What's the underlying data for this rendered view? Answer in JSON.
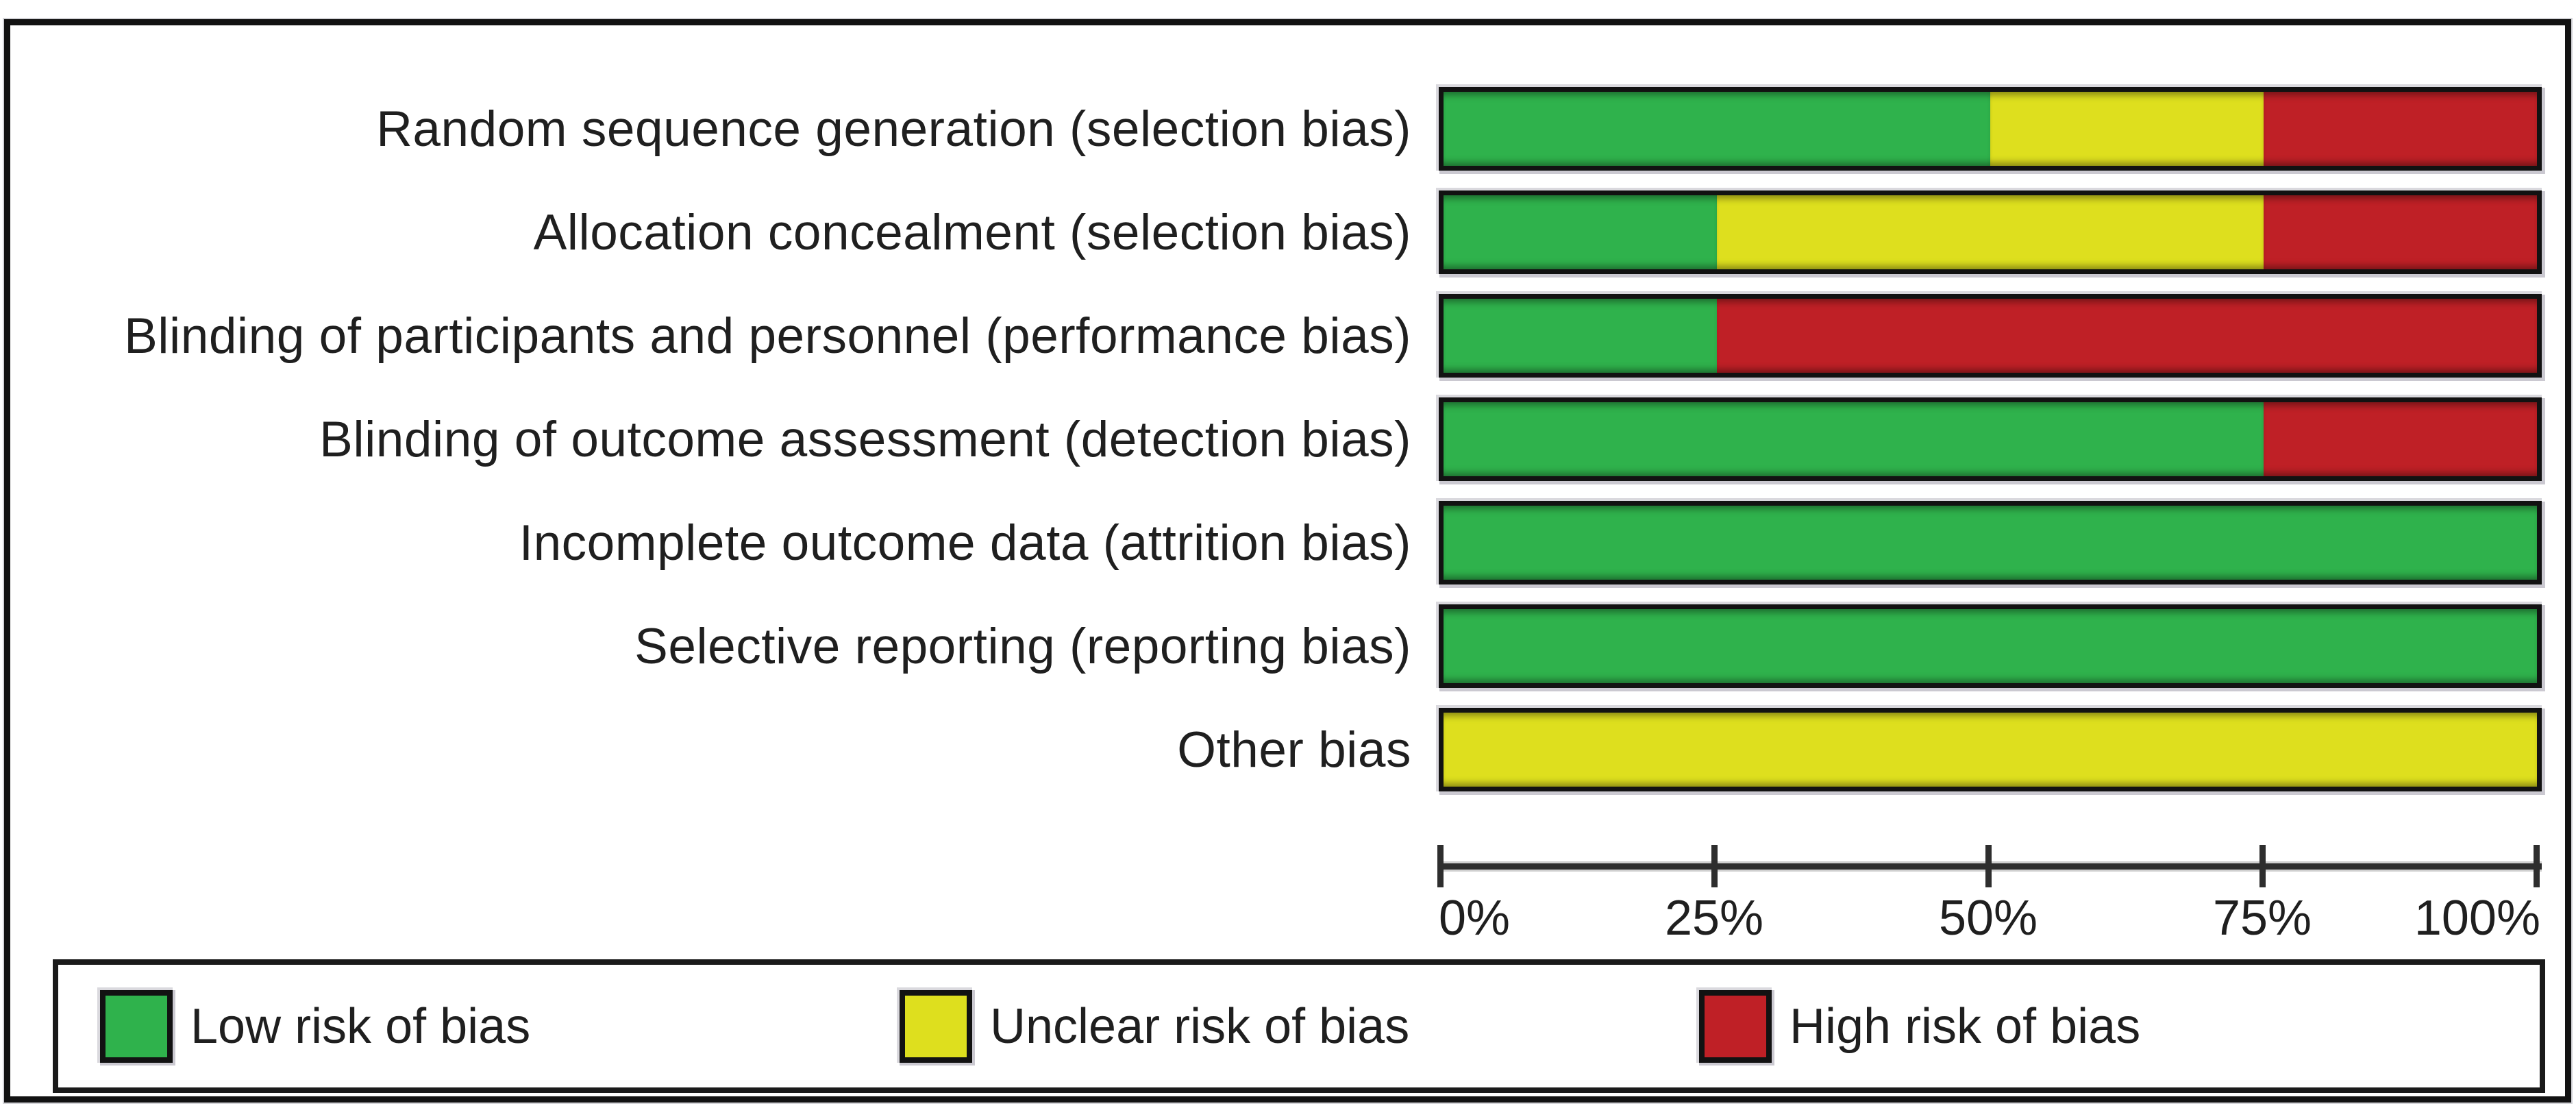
{
  "colors": {
    "low": "#2FB24C",
    "unclear": "#DEDF1E",
    "high": "#BF2026"
  },
  "chart_data": {
    "type": "bar",
    "orientation": "horizontal",
    "stacked": true,
    "title": "",
    "xlabel": "",
    "ylabel": "",
    "unit": "percent",
    "xlim": [
      0,
      100
    ],
    "grid": false,
    "categories": [
      "Random sequence generation (selection bias)",
      "Allocation concealment (selection bias)",
      "Blinding of participants and personnel (performance bias)",
      "Blinding of outcome assessment (detection bias)",
      "Incomplete outcome data (attrition bias)",
      "Selective reporting (reporting bias)",
      "Other bias"
    ],
    "series": [
      {
        "name": "Low risk of bias",
        "color_key": "low",
        "values": [
          50,
          25,
          25,
          75,
          100,
          100,
          0
        ]
      },
      {
        "name": "Unclear risk of bias",
        "color_key": "unclear",
        "values": [
          25,
          50,
          0,
          0,
          0,
          0,
          100
        ]
      },
      {
        "name": "High risk of bias",
        "color_key": "high",
        "values": [
          25,
          25,
          75,
          25,
          0,
          0,
          0
        ]
      }
    ],
    "x_axis": {
      "ticks": [
        "0%",
        "25%",
        "50%",
        "75%",
        "100%"
      ],
      "tick_positions": [
        0,
        25,
        50,
        75,
        100
      ]
    },
    "legend": [
      {
        "label": "Low risk of bias",
        "color_key": "low"
      },
      {
        "label": "Unclear risk of bias",
        "color_key": "unclear"
      },
      {
        "label": "High risk of bias",
        "color_key": "high"
      }
    ],
    "legend_position": "bottom"
  }
}
